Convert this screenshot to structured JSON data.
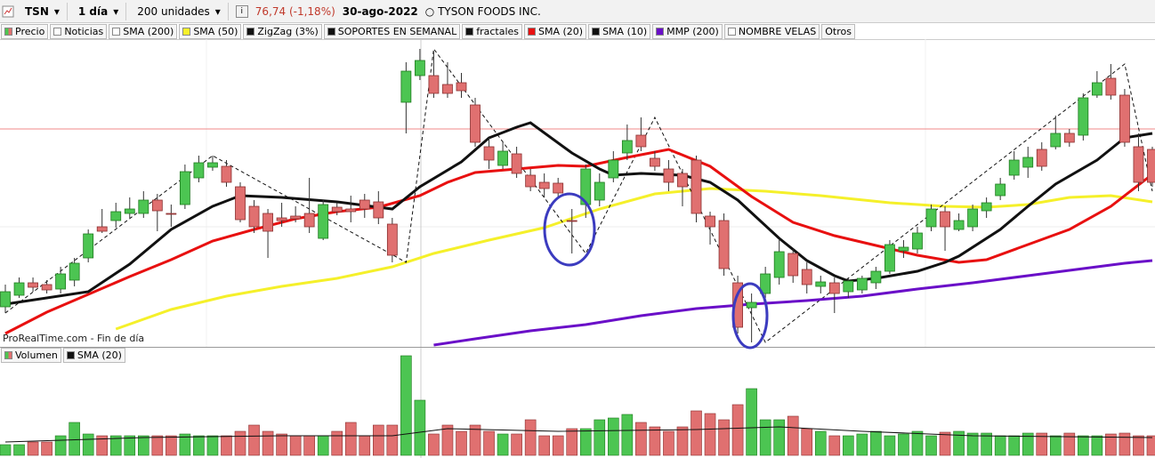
{
  "toolbar": {
    "symbol": "TSN",
    "period": "1 día",
    "units": "200 unidades",
    "price": "76,74 (-1,18%)",
    "date": "30-ago-2022",
    "name": "TYSON FOODS INC."
  },
  "footer": "ProRealTime.com - Fin de día",
  "chart_data": [
    {
      "type": "candlestick",
      "ylim": [
        57.5,
        92
      ],
      "series": [
        {
          "name": "Precio",
          "up_color": "#4cc552",
          "down_color": "#e07070",
          "open": [
            62.0,
            63.3,
            64.7,
            64.5,
            64.0,
            65.0,
            67.5,
            71.0,
            71.7,
            72.5,
            72.5,
            74.0,
            72.5,
            73.5,
            76.5,
            77.7,
            77.8,
            75.5,
            73.3,
            72.5,
            72.0,
            72.2,
            72.5,
            69.7,
            73.2,
            73.0,
            74.0,
            73.8,
            71.3,
            85.0,
            88.0,
            88.0,
            87.0,
            87.2,
            84.7,
            80.0,
            77.9,
            79.2,
            76.8,
            76.0,
            75.9,
            71.7,
            73.5,
            74.0,
            76.5,
            79.3,
            81.3,
            78.7,
            77.5,
            77.0,
            78.5,
            72.2,
            71.7,
            64.7,
            61.9,
            63.5,
            65.3,
            68.0,
            66.2,
            64.3,
            64.7,
            63.7,
            63.9,
            64.7,
            66.0,
            68.3,
            68.5,
            71.0,
            72.7,
            70.7,
            71.0,
            72.8,
            74.5,
            76.8,
            77.7,
            79.7,
            80.0,
            81.5,
            81.3,
            85.8,
            87.7,
            85.8,
            80.0,
            79.7
          ],
          "high": [
            64.5,
            65.3,
            65.3,
            65.0,
            66.5,
            67.5,
            70.7,
            73.0,
            73.7,
            74.3,
            75.0,
            74.7,
            73.5,
            78.0,
            79.0,
            79.0,
            78.5,
            76.0,
            74.0,
            73.0,
            73.7,
            73.3,
            76.5,
            74.0,
            73.7,
            74.5,
            74.7,
            75.0,
            72.0,
            89.5,
            91.0,
            90.7,
            89.5,
            88.3,
            85.5,
            81.0,
            80.5,
            80.0,
            77.5,
            77.0,
            76.5,
            73.0,
            78.0,
            77.0,
            79.5,
            82.5,
            83.3,
            79.5,
            78.5,
            77.5,
            79.0,
            72.7,
            72.5,
            65.5,
            63.5,
            66.5,
            69.5,
            68.5,
            67.0,
            65.5,
            65.3,
            65.3,
            65.5,
            66.5,
            69.5,
            69.5,
            71.0,
            73.5,
            73.3,
            72.5,
            73.5,
            74.3,
            76.5,
            79.5,
            80.0,
            80.5,
            83.5,
            82.0,
            86.0,
            88.5,
            89.3,
            86.5,
            81.5,
            80.0
          ],
          "low": [
            61.3,
            63.0,
            63.7,
            63.5,
            63.5,
            64.3,
            67.0,
            70.3,
            70.9,
            72.0,
            72.0,
            70.5,
            71.0,
            73.0,
            76.0,
            77.3,
            75.5,
            71.5,
            70.3,
            67.5,
            71.0,
            71.5,
            70.3,
            69.5,
            72.3,
            71.5,
            72.0,
            71.3,
            67.0,
            81.5,
            87.5,
            85.5,
            85.5,
            85.5,
            80.0,
            77.5,
            77.5,
            76.5,
            75.0,
            74.3,
            74.3,
            68.0,
            72.0,
            73.3,
            76.0,
            78.5,
            79.5,
            77.3,
            75.0,
            73.3,
            71.5,
            69.0,
            65.5,
            59.0,
            58.0,
            63.0,
            64.5,
            64.7,
            63.5,
            63.5,
            61.3,
            63.0,
            63.5,
            64.0,
            65.7,
            67.5,
            68.0,
            70.5,
            68.3,
            70.5,
            70.5,
            72.0,
            74.0,
            76.3,
            76.5,
            77.3,
            79.7,
            80.0,
            80.7,
            85.5,
            85.3,
            80.0,
            75.0,
            75.5
          ],
          "close": [
            63.7,
            64.7,
            64.2,
            63.9,
            65.7,
            66.9,
            70.2,
            70.5,
            72.7,
            73.0,
            74.0,
            72.8,
            72.4,
            77.2,
            78.2,
            78.2,
            76.0,
            71.8,
            71.0,
            70.5,
            71.7,
            71.9,
            71.0,
            73.5,
            72.7,
            72.7,
            73.0,
            72.0,
            67.8,
            88.5,
            89.7,
            86.0,
            86.0,
            86.3,
            80.5,
            78.5,
            79.5,
            77.0,
            75.5,
            75.3,
            74.8,
            71.6,
            77.5,
            76.0,
            78.5,
            80.7,
            80.0,
            77.8,
            76.0,
            75.5,
            72.5,
            71.0,
            66.3,
            59.7,
            62.5,
            65.7,
            68.2,
            65.5,
            64.5,
            64.8,
            63.5,
            64.9,
            65.2,
            66.0,
            69.0,
            68.7,
            70.3,
            73.0,
            71.0,
            71.7,
            73.0,
            73.7,
            75.8,
            78.5,
            78.8,
            77.8,
            81.5,
            80.5,
            85.5,
            87.2,
            85.8,
            80.5,
            76.0,
            76.0
          ]
        },
        {
          "name": "Noticias"
        },
        {
          "name": "SMA (200)"
        },
        {
          "name": "SMA (50)",
          "color": "#f5f02a",
          "x": [
            8,
            12,
            16,
            20,
            24,
            28,
            31,
            35,
            39,
            43,
            47,
            51,
            55,
            59,
            64,
            68,
            71,
            74,
            77,
            80,
            83
          ],
          "values": [
            59.5,
            61.7,
            63.2,
            64.3,
            65.2,
            66.5,
            68.0,
            69.5,
            70.9,
            73.0,
            74.7,
            75.3,
            75.0,
            74.5,
            73.7,
            73.3,
            73.2,
            73.5,
            74.3,
            74.5,
            73.8
          ]
        },
        {
          "name": "ZigZag (3%)",
          "color": "#111111",
          "dashed": true,
          "x": [
            0,
            15,
            29,
            31,
            42,
            47,
            55,
            81,
            83
          ],
          "values": [
            61.3,
            79.0,
            67.0,
            91.0,
            68.0,
            83.3,
            58.0,
            89.3,
            75.0
          ]
        },
        {
          "name": "SOPORTES EN SEMANAL",
          "color": "#111111"
        },
        {
          "name": "fractales",
          "color": "#111111"
        },
        {
          "name": "SMA (20)",
          "color": "#e81010",
          "x": [
            0,
            3,
            6,
            9,
            12,
            15,
            18,
            21,
            24,
            27,
            30,
            32,
            34,
            37,
            40,
            42,
            45,
            48,
            51,
            54,
            57,
            60,
            63,
            66,
            69,
            71,
            74,
            77,
            80,
            83
          ],
          "values": [
            59.0,
            61.4,
            63.4,
            65.4,
            67.3,
            69.4,
            70.7,
            71.9,
            72.7,
            73.2,
            74.5,
            76.0,
            77.1,
            77.5,
            77.9,
            77.8,
            78.8,
            79.7,
            77.8,
            74.4,
            71.5,
            70.0,
            68.9,
            67.8,
            67.0,
            67.3,
            69.0,
            70.7,
            73.3,
            76.9
          ]
        },
        {
          "name": "SMA (10)",
          "color": "#111111",
          "x": [
            0,
            6,
            9,
            12,
            15,
            17,
            20,
            24,
            28,
            30,
            33,
            35,
            37,
            38,
            41,
            43,
            44,
            46,
            49,
            51,
            53,
            56,
            58,
            60,
            61,
            63,
            66,
            68,
            69,
            72,
            74,
            76,
            79,
            81,
            83
          ],
          "values": [
            62.3,
            63.7,
            66.8,
            70.7,
            73.3,
            74.5,
            74.3,
            73.8,
            73.0,
            75.5,
            78.3,
            81.0,
            82.2,
            82.7,
            79.3,
            77.5,
            76.8,
            77.0,
            76.8,
            76.0,
            74.0,
            69.7,
            67.2,
            65.5,
            64.9,
            65.2,
            66.0,
            67.0,
            67.7,
            70.7,
            73.3,
            75.8,
            78.5,
            81.0,
            81.5
          ]
        },
        {
          "name": "MMP (200)",
          "color": "#6a0fc8",
          "x": [
            31,
            34,
            38,
            42,
            46,
            50,
            54,
            58,
            62,
            66,
            70,
            74,
            78,
            81,
            83
          ],
          "values": [
            57.7,
            58.4,
            59.3,
            60.0,
            61.0,
            61.8,
            62.3,
            62.7,
            63.2,
            64.0,
            64.7,
            65.5,
            66.3,
            66.9,
            67.2
          ]
        },
        {
          "name": "NOMBRE VELAS"
        },
        {
          "name": "Otros"
        }
      ]
    },
    {
      "type": "bar",
      "ylim": [
        0,
        11.2
      ],
      "series": [
        {
          "name": "Volumen",
          "up_color": "#4cc552",
          "down_color": "#e07070",
          "values": [
            1.2,
            1.2,
            1.5,
            1.5,
            2.2,
            3.7,
            2.4,
            2.2,
            2.2,
            2.2,
            2.2,
            2.2,
            2.2,
            2.4,
            2.2,
            2.2,
            2.2,
            2.7,
            3.4,
            2.7,
            2.4,
            2.2,
            2.2,
            2.2,
            2.7,
            3.7,
            2.2,
            3.4,
            3.4,
            11.2,
            6.2,
            2.4,
            3.4,
            2.7,
            3.4,
            2.7,
            2.4,
            2.4,
            4.0,
            2.2,
            2.2,
            3.0,
            3.0,
            4.0,
            4.2,
            4.6,
            3.7,
            3.2,
            2.7,
            3.2,
            5.0,
            4.7,
            4.0,
            5.7,
            7.5,
            4.0,
            4.0,
            4.4,
            3.0,
            2.7,
            2.2,
            2.2,
            2.4,
            2.7,
            2.2,
            2.4,
            2.7,
            2.2,
            2.6,
            2.7,
            2.5,
            2.5,
            2.2,
            2.2,
            2.5,
            2.5,
            2.2,
            2.5,
            2.2,
            2.2,
            2.4,
            2.5,
            2.2,
            2.2
          ]
        },
        {
          "name": "SMA (20)",
          "color": "#111111",
          "x": [
            0,
            10,
            20,
            28,
            32,
            40,
            50,
            56,
            62,
            70,
            83
          ],
          "values": [
            1.5,
            2.0,
            2.2,
            2.2,
            3.0,
            2.7,
            2.9,
            3.2,
            2.7,
            2.2,
            2.0
          ]
        }
      ]
    }
  ]
}
